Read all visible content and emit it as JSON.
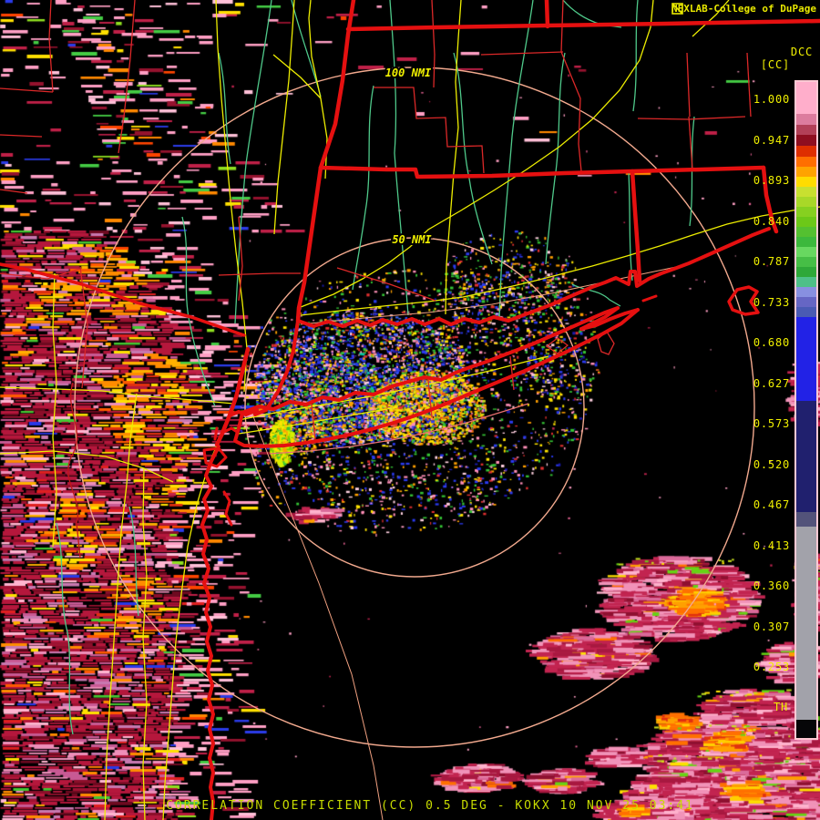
{
  "header": {
    "title": "NEXLAB-College of DuPage",
    "logo_icon": "cod-logo"
  },
  "scale": {
    "product_code": "DCC",
    "units_label": "[CC]",
    "values": [
      "1.000",
      "0.947",
      "0.893",
      "0.840",
      "0.787",
      "0.733",
      "0.680",
      "0.627",
      "0.573",
      "0.520",
      "0.467",
      "0.413",
      "0.360",
      "0.307",
      "0.253"
    ],
    "threshold_label": "TH",
    "segments": [
      [
        "#FFAECB",
        125
      ],
      [
        "#DC7C9E",
        137
      ],
      [
        "#B24058",
        148
      ],
      [
        "#8E0E20",
        160
      ],
      [
        "#DE2E00",
        172
      ],
      [
        "#FF6E00",
        183
      ],
      [
        "#FFA300",
        194
      ],
      [
        "#FFDC00",
        205
      ],
      [
        "#C8E030",
        216
      ],
      [
        "#A8D828",
        227
      ],
      [
        "#86D020",
        238
      ],
      [
        "#6CC818",
        249
      ],
      [
        "#54C030",
        260
      ],
      [
        "#3CB83C",
        271
      ],
      [
        "#68D860",
        282
      ],
      [
        "#46BE46",
        293
      ],
      [
        "#2EA838",
        304
      ],
      [
        "#4EC088",
        315
      ],
      [
        "#8890E0",
        326
      ],
      [
        "#6666C4",
        337
      ],
      [
        "#4A5AB4",
        348
      ],
      [
        "#2222E6",
        440
      ],
      [
        "#20206E",
        562
      ],
      [
        "#53537A",
        578
      ],
      [
        "#A2A2AA",
        790
      ],
      [
        "#060608",
        810
      ]
    ]
  },
  "rings": {
    "outer_label": "100 NMI",
    "inner_label": "50 NMI"
  },
  "caption": "CORRELATION COEFFICIENT (CC) 0.5 DEG - KOKX 10 NOV 25 03:41",
  "colors": {
    "label_yellow": "#F0F000",
    "title_yellow": "#E8E800",
    "caption_green": "#C8DC00",
    "ring_salmon": "#F2A98E",
    "state_border_red": "#E51010",
    "county_red": "#DC2828",
    "road_yellow": "#EDED00",
    "road_salmon": "#F0A080",
    "river_teal": "#4FC98A",
    "scale_border_pink": "#FFC9D4",
    "background": "#000000"
  }
}
